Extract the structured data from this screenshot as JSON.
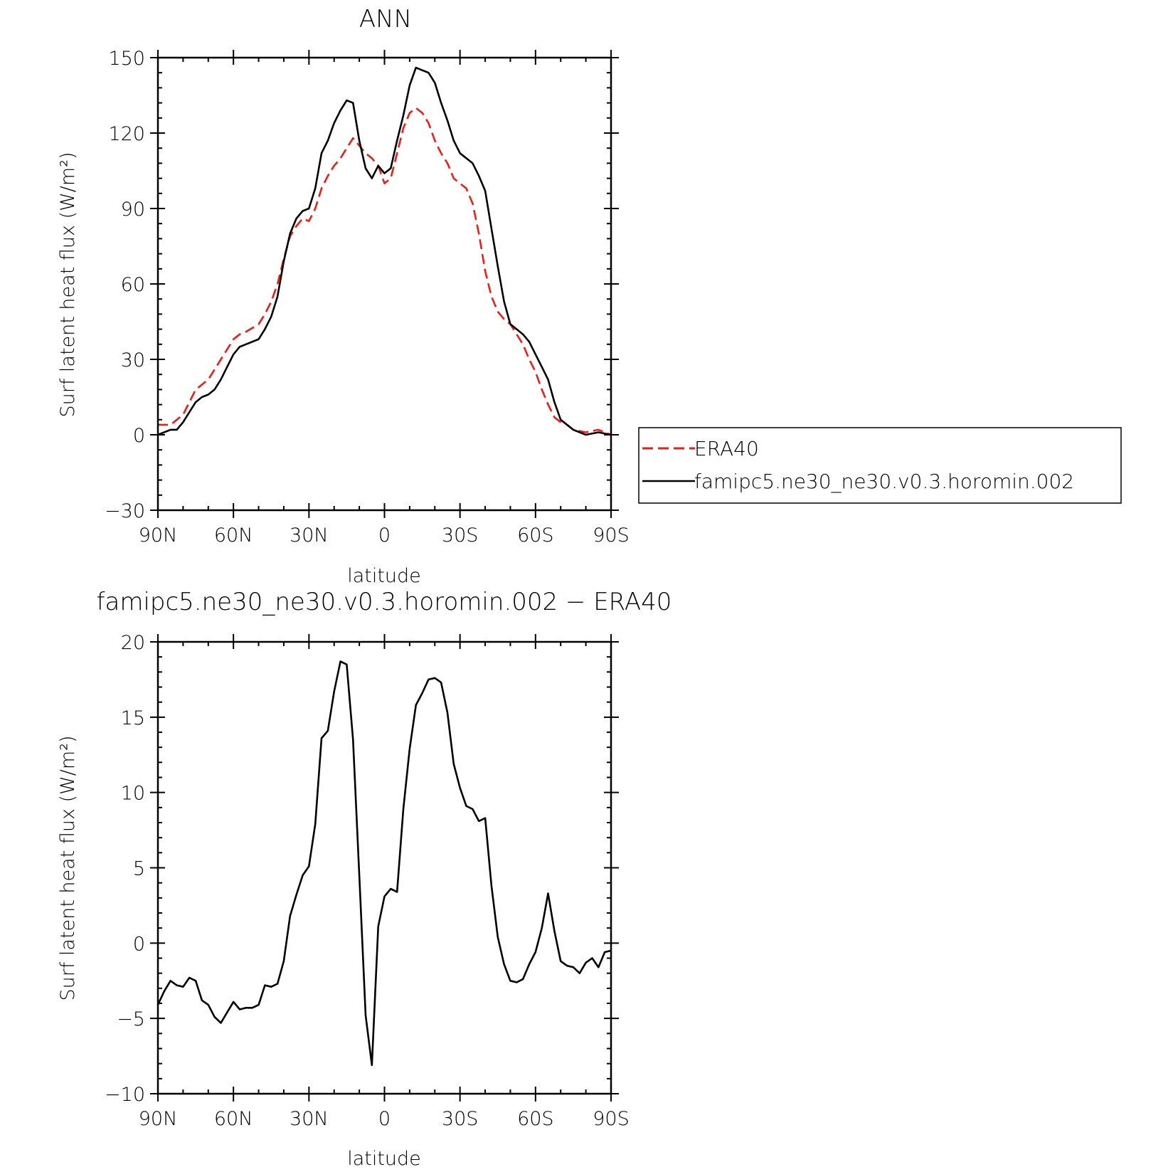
{
  "chart_data": [
    {
      "type": "line",
      "title": "ANN",
      "xlabel": "latitude",
      "ylabel": "Surf latent heat flux (W/m²)",
      "xlim": [
        90,
        -90
      ],
      "ylim": [
        -30,
        150
      ],
      "y_ticks": [
        -30,
        0,
        30,
        60,
        90,
        120,
        150
      ],
      "y_tick_labels": [
        "−30",
        "0",
        "30",
        "60",
        "90",
        "120",
        "150"
      ],
      "x_ticks": [
        90,
        60,
        30,
        0,
        -30,
        -60,
        -90
      ],
      "x_tick_labels": [
        "90N",
        "60N",
        "30N",
        "0",
        "30S",
        "60S",
        "90S"
      ],
      "grid": false,
      "legend_position": "right",
      "series": [
        {
          "name": "ERA40",
          "color": "#e8201a",
          "dash": "dashed",
          "x": [
            90,
            85,
            80,
            75,
            70,
            65,
            60,
            57.5,
            55,
            50,
            47.5,
            45,
            42.5,
            40,
            37.5,
            35,
            32.5,
            30,
            27.5,
            25,
            22.5,
            20,
            17.5,
            15,
            12.5,
            10,
            7.5,
            5,
            2.5,
            0,
            -2.5,
            -5,
            -7.5,
            -10,
            -12.5,
            -15,
            -17.5,
            -20,
            -22.5,
            -25,
            -27.5,
            -30,
            -32.5,
            -35,
            -37.5,
            -40,
            -42.5,
            -45,
            -47.5,
            -50,
            -52.5,
            -55,
            -57.5,
            -60,
            -62.5,
            -65,
            -67.5,
            -70,
            -72.5,
            -75,
            -80,
            -85,
            -90
          ],
          "y": [
            4,
            4,
            8,
            18,
            22,
            30,
            38,
            40,
            41,
            44,
            48,
            53,
            60,
            70,
            79,
            83,
            86,
            85,
            90,
            98,
            103,
            107,
            110,
            114,
            118,
            115,
            112,
            110,
            107,
            100,
            102,
            112,
            122,
            128,
            130,
            128,
            124,
            117,
            112,
            108,
            102,
            100,
            98,
            92,
            80,
            65,
            55,
            49,
            46,
            44,
            40,
            36,
            30,
            25,
            18,
            12,
            7,
            5,
            4,
            2,
            1,
            2,
            0
          ]
        },
        {
          "name": "famipc5.ne30_ne30.v0.3.horomin.002",
          "color": "#000000",
          "dash": "solid",
          "x": [
            90,
            85,
            82.5,
            80,
            77.5,
            75,
            72.5,
            70,
            67.5,
            65,
            62.5,
            60,
            57.5,
            55,
            50,
            47.5,
            45,
            42.5,
            40,
            37.5,
            35,
            32.5,
            30,
            27.5,
            25,
            22.5,
            20,
            17.5,
            15,
            12.5,
            10,
            7.5,
            5,
            2.5,
            0,
            -2.5,
            -5,
            -7.5,
            -10,
            -12.5,
            -15,
            -17.5,
            -20,
            -22.5,
            -25,
            -27.5,
            -30,
            -32.5,
            -35,
            -37.5,
            -40,
            -42.5,
            -45,
            -47.5,
            -50,
            -52.5,
            -55,
            -57.5,
            -60,
            -62.5,
            -65,
            -67.5,
            -70,
            -72.5,
            -75,
            -80,
            -85,
            -90
          ],
          "y": [
            0,
            2,
            2,
            5,
            9,
            13,
            15,
            16,
            18,
            22,
            27,
            32,
            35,
            36,
            38,
            42,
            47,
            55,
            69,
            80,
            86,
            89,
            90,
            98,
            112,
            117,
            124,
            129,
            133,
            132,
            117,
            106,
            102,
            107,
            104,
            106,
            117,
            127,
            139,
            146,
            145,
            144,
            140,
            132,
            125,
            117,
            112,
            110,
            108,
            103,
            97,
            82,
            67,
            53,
            44,
            42,
            40,
            37,
            32,
            27,
            22,
            13,
            6,
            4,
            2,
            0,
            1,
            0
          ]
        }
      ]
    },
    {
      "type": "line",
      "title": "famipc5.ne30_ne30.v0.3.horomin.002 − ERA40",
      "xlabel": "latitude",
      "ylabel": "Surf latent heat flux (W/m²)",
      "xlim": [
        90,
        -90
      ],
      "ylim": [
        -10,
        20
      ],
      "y_ticks": [
        -10,
        -5,
        0,
        5,
        10,
        15,
        20
      ],
      "y_tick_labels": [
        "−10",
        "−5",
        "0",
        "5",
        "10",
        "15",
        "20"
      ],
      "x_ticks": [
        90,
        60,
        30,
        0,
        -30,
        -60,
        -90
      ],
      "x_tick_labels": [
        "90N",
        "60N",
        "30N",
        "0",
        "30S",
        "60S",
        "90S"
      ],
      "grid": false,
      "series": [
        {
          "color": "#000000",
          "dash": "solid",
          "x": [
            90,
            87.5,
            85,
            82.5,
            80,
            77.5,
            75,
            72.5,
            70,
            67.5,
            65,
            62.5,
            60,
            57.5,
            55,
            52.5,
            50,
            47.5,
            45,
            42.5,
            40,
            37.5,
            35,
            32.5,
            30,
            27.5,
            25,
            22.5,
            20,
            17.5,
            15,
            12.5,
            10,
            7.5,
            5,
            2.5,
            0,
            -2.5,
            -5,
            -7.5,
            -10,
            -12.5,
            -15,
            -17.5,
            -20,
            -22.5,
            -25,
            -27.5,
            -30,
            -32.5,
            -35,
            -37.5,
            -40,
            -42.5,
            -45,
            -47.5,
            -50,
            -52.5,
            -55,
            -57.5,
            -60,
            -62.5,
            -65,
            -67.5,
            -70,
            -72.5,
            -75,
            -77.5,
            -80,
            -82.5,
            -85,
            -87.5,
            -90
          ],
          "y": [
            -4.1,
            -3.2,
            -2.5,
            -2.8,
            -2.9,
            -2.3,
            -2.5,
            -3.8,
            -4.1,
            -4.9,
            -5.3,
            -4.6,
            -3.9,
            -4.4,
            -4.3,
            -4.3,
            -4.1,
            -2.8,
            -2.9,
            -2.7,
            -1.2,
            1.8,
            3.2,
            4.5,
            5.1,
            7.9,
            13.6,
            14.1,
            16.7,
            18.7,
            18.5,
            13.5,
            4.5,
            -4.8,
            -8.1,
            1.1,
            3.1,
            3.6,
            3.4,
            8.9,
            12.9,
            15.8,
            16.6,
            17.5,
            17.6,
            17.3,
            15.3,
            11.9,
            10.3,
            9.1,
            8.9,
            8.1,
            8.3,
            3.8,
            0.4,
            -1.4,
            -2.5,
            -2.6,
            -2.4,
            -1.4,
            -0.6,
            1.0,
            3.3,
            0.8,
            -1.2,
            -1.5,
            -1.6,
            -2.0,
            -1.3,
            -1.0,
            -1.6,
            -0.6,
            -0.5
          ]
        }
      ]
    }
  ]
}
